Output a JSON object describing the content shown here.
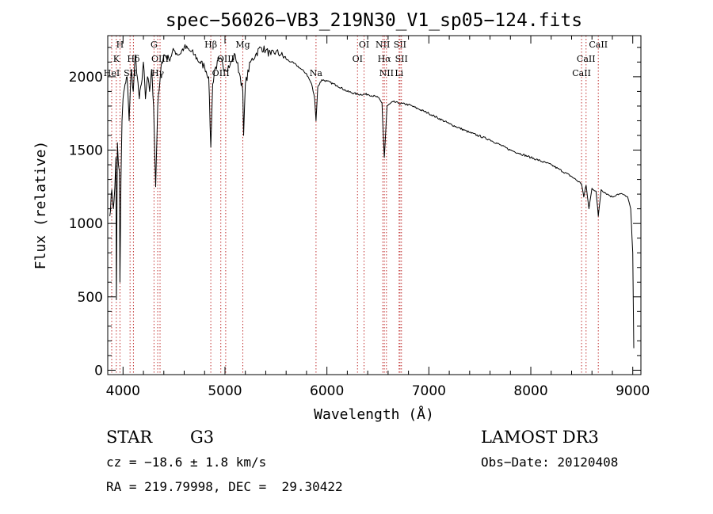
{
  "chart_data": {
    "type": "line",
    "title": "spec−56026−VB3_219N30_V1_sp05−124.fits",
    "xlabel": "Wavelength (Å)",
    "ylabel": "Flux (relative)",
    "xlim": [
      3850,
      9080
    ],
    "ylim": [
      -30,
      2280
    ],
    "x_ticks": [
      4000,
      5000,
      6000,
      7000,
      8000,
      9000
    ],
    "x_tick_labels": [
      "4000",
      "5000",
      "6000",
      "7000",
      "8000",
      "9000"
    ],
    "y_ticks": [
      0,
      500,
      1000,
      1500,
      2000
    ],
    "y_tick_labels": [
      "0",
      "500",
      "1000",
      "1500",
      "2000"
    ],
    "grid": false,
    "series": [
      {
        "name": "spectrum",
        "x": [
          3870,
          3890,
          3905,
          3920,
          3930,
          3935,
          3945,
          3955,
          3965,
          3970,
          3980,
          3990,
          4000,
          4020,
          4040,
          4060,
          4080,
          4100,
          4120,
          4140,
          4160,
          4180,
          4200,
          4220,
          4240,
          4260,
          4280,
          4300,
          4320,
          4340,
          4360,
          4380,
          4400,
          4450,
          4500,
          4550,
          4600,
          4650,
          4700,
          4750,
          4800,
          4840,
          4861,
          4880,
          4900,
          4950,
          5000,
          5050,
          5100,
          5150,
          5175,
          5183,
          5200,
          5250,
          5300,
          5350,
          5400,
          5450,
          5500,
          5550,
          5600,
          5650,
          5700,
          5750,
          5800,
          5850,
          5880,
          5893,
          5910,
          5950,
          6000,
          6100,
          6200,
          6300,
          6400,
          6500,
          6540,
          6563,
          6590,
          6650,
          6700,
          6800,
          6900,
          7000,
          7200,
          7400,
          7600,
          7800,
          8000,
          8200,
          8400,
          8498,
          8520,
          8542,
          8570,
          8600,
          8640,
          8662,
          8690,
          8750,
          8800,
          8850,
          8900,
          8950,
          8980,
          9000,
          9010
        ],
        "values": [
          1050,
          1230,
          1100,
          1250,
          1450,
          480,
          1550,
          1400,
          1350,
          600,
          1300,
          1700,
          1850,
          1950,
          2000,
          1700,
          2050,
          1900,
          2150,
          2000,
          1850,
          1950,
          2100,
          1850,
          2000,
          1900,
          2050,
          1800,
          1250,
          1800,
          1950,
          2100,
          2150,
          2120,
          2180,
          2150,
          2200,
          2180,
          2150,
          2100,
          2070,
          2000,
          1520,
          1950,
          2050,
          2120,
          2050,
          2080,
          2150,
          2000,
          1900,
          1600,
          1950,
          2100,
          2150,
          2200,
          2180,
          2150,
          2170,
          2150,
          2120,
          2100,
          2080,
          2050,
          2020,
          1950,
          1850,
          1700,
          1930,
          1980,
          1970,
          1940,
          1900,
          1880,
          1880,
          1860,
          1820,
          1450,
          1800,
          1830,
          1820,
          1810,
          1780,
          1750,
          1680,
          1620,
          1570,
          1500,
          1450,
          1400,
          1320,
          1270,
          1180,
          1260,
          1100,
          1240,
          1220,
          1050,
          1230,
          1200,
          1180,
          1200,
          1200,
          1180,
          1100,
          800,
          150
        ]
      }
    ],
    "line_markers": [
      {
        "label": "H",
        "x": 3970,
        "row": 0
      },
      {
        "label": "K",
        "x": 3934,
        "row": 1
      },
      {
        "label": "HeI",
        "x": 3889,
        "row": 2
      },
      {
        "label": "SII",
        "x": 4069,
        "row": 2
      },
      {
        "label": "Hδ",
        "x": 4102,
        "row": 1
      },
      {
        "label": "G",
        "x": 4304,
        "row": 0
      },
      {
        "label": "OIII",
        "x": 4363,
        "row": 1
      },
      {
        "label": "Hγ",
        "x": 4340,
        "row": 2
      },
      {
        "label": "Hβ",
        "x": 4861,
        "row": 0
      },
      {
        "label": "OIII",
        "x": 5007,
        "row": 1
      },
      {
        "label": "OIII",
        "x": 4959,
        "row": 2
      },
      {
        "label": "Mg",
        "x": 5175,
        "row": 0
      },
      {
        "label": "Na",
        "x": 5893,
        "row": 2
      },
      {
        "label": "OI",
        "x": 6364,
        "row": 0
      },
      {
        "label": "OI",
        "x": 6300,
        "row": 1
      },
      {
        "label": "NII",
        "x": 6548,
        "row": 0
      },
      {
        "label": "SII",
        "x": 6717,
        "row": 0
      },
      {
        "label": "Hα",
        "x": 6563,
        "row": 1
      },
      {
        "label": "SII",
        "x": 6731,
        "row": 1
      },
      {
        "label": "NII",
        "x": 6584,
        "row": 2
      },
      {
        "label": "Li",
        "x": 6708,
        "row": 2
      },
      {
        "label": "CaII",
        "x": 8662,
        "row": 0
      },
      {
        "label": "CaII",
        "x": 8542,
        "row": 1
      },
      {
        "label": "CaII",
        "x": 8498,
        "row": 2
      }
    ],
    "marker_color": "#c03030",
    "line_color": "#000000"
  },
  "info": {
    "object_class": "STAR",
    "subclass": "G3",
    "survey": "LAMOST DR3",
    "redshift": "cz = −18.6 ± 1.8 km/s",
    "obs_date": "Obs−Date: 20120408",
    "coords": "RA = 219.79998, DEC =  29.30422"
  }
}
